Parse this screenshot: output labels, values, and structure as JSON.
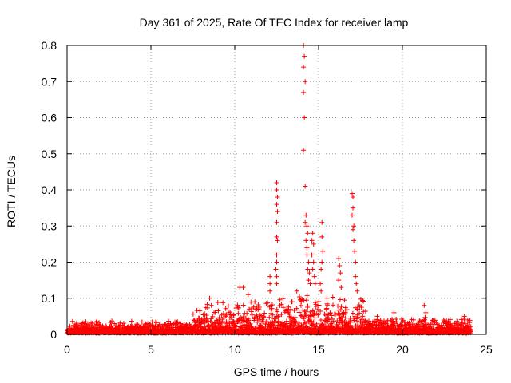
{
  "chart_data": {
    "type": "scatter",
    "title": "Day 361 of 2025, Rate Of TEC Index for receiver lamp",
    "xlabel": "GPS time / hours",
    "ylabel": "ROTI / TECUs",
    "xlim": [
      0,
      25
    ],
    "ylim": [
      0,
      0.8
    ],
    "xticks": [
      0,
      5,
      10,
      15,
      20,
      25
    ],
    "xtick_labels": [
      "0",
      "5",
      "10",
      "15",
      "20",
      "25"
    ],
    "yticks": [
      0,
      0.1,
      0.2,
      0.3,
      0.4,
      0.5,
      0.6,
      0.7,
      0.8
    ],
    "ytick_labels": [
      "0",
      "0.1",
      "0.2",
      "0.3",
      "0.4",
      "0.5",
      "0.6",
      "0.7",
      "0.8"
    ],
    "grid": true,
    "marker": "+",
    "series_color": "#ff0000",
    "background_noise": {
      "note": "dense cloud of points near baseline across 0-24 h",
      "segments": [
        {
          "x_start": 0.0,
          "x_end": 7.5,
          "y_max": 0.035
        },
        {
          "x_start": 7.5,
          "x_end": 12.0,
          "y_max": 0.09
        },
        {
          "x_start": 12.0,
          "x_end": 17.8,
          "y_max": 0.11
        },
        {
          "x_start": 17.8,
          "x_end": 24.1,
          "y_max": 0.045
        }
      ]
    },
    "points": [
      [
        12.5,
        0.42
      ],
      [
        12.5,
        0.4
      ],
      [
        12.55,
        0.38
      ],
      [
        12.5,
        0.36
      ],
      [
        12.55,
        0.34
      ],
      [
        12.5,
        0.31
      ],
      [
        12.5,
        0.27
      ],
      [
        12.55,
        0.26
      ],
      [
        12.5,
        0.22
      ],
      [
        12.5,
        0.2
      ],
      [
        12.45,
        0.18
      ],
      [
        12.5,
        0.16
      ],
      [
        12.5,
        0.14
      ],
      [
        12.1,
        0.16
      ],
      [
        12.1,
        0.14
      ],
      [
        12.1,
        0.12
      ],
      [
        14.1,
        0.8
      ],
      [
        14.15,
        0.77
      ],
      [
        14.1,
        0.74
      ],
      [
        14.2,
        0.7
      ],
      [
        14.1,
        0.67
      ],
      [
        14.15,
        0.6
      ],
      [
        14.1,
        0.51
      ],
      [
        14.2,
        0.41
      ],
      [
        14.25,
        0.33
      ],
      [
        14.2,
        0.31
      ],
      [
        14.3,
        0.3
      ],
      [
        14.35,
        0.28
      ],
      [
        14.25,
        0.26
      ],
      [
        14.3,
        0.24
      ],
      [
        14.3,
        0.22
      ],
      [
        14.4,
        0.2
      ],
      [
        14.35,
        0.18
      ],
      [
        14.45,
        0.17
      ],
      [
        14.4,
        0.15
      ],
      [
        14.5,
        0.14
      ],
      [
        14.6,
        0.26
      ],
      [
        14.65,
        0.28
      ],
      [
        14.7,
        0.25
      ],
      [
        14.6,
        0.22
      ],
      [
        14.7,
        0.2
      ],
      [
        14.65,
        0.18
      ],
      [
        14.75,
        0.16
      ],
      [
        14.8,
        0.14
      ],
      [
        15.2,
        0.31
      ],
      [
        15.2,
        0.27
      ],
      [
        15.25,
        0.23
      ],
      [
        15.2,
        0.2
      ],
      [
        15.15,
        0.18
      ],
      [
        15.1,
        0.14
      ],
      [
        15.15,
        0.12
      ],
      [
        16.2,
        0.21
      ],
      [
        16.25,
        0.19
      ],
      [
        16.3,
        0.17
      ],
      [
        16.2,
        0.15
      ],
      [
        16.35,
        0.13
      ],
      [
        17.0,
        0.39
      ],
      [
        17.05,
        0.38
      ],
      [
        17.05,
        0.35
      ],
      [
        17.0,
        0.33
      ],
      [
        17.1,
        0.3
      ],
      [
        17.05,
        0.29
      ],
      [
        17.1,
        0.26
      ],
      [
        17.15,
        0.23
      ],
      [
        17.2,
        0.2
      ],
      [
        17.2,
        0.16
      ],
      [
        17.25,
        0.14
      ],
      [
        17.3,
        0.12
      ],
      [
        8.5,
        0.1
      ],
      [
        8.6,
        0.08
      ],
      [
        10.3,
        0.13
      ],
      [
        10.5,
        0.13
      ],
      [
        10.8,
        0.11
      ],
      [
        11.2,
        0.09
      ],
      [
        13.4,
        0.09
      ],
      [
        13.7,
        0.12
      ],
      [
        15.5,
        0.1
      ],
      [
        18.5,
        0.05
      ],
      [
        19.5,
        0.06
      ],
      [
        21.3,
        0.08
      ],
      [
        21.4,
        0.06
      ],
      [
        23.7,
        0.05
      ],
      [
        23.9,
        0.04
      ]
    ]
  }
}
